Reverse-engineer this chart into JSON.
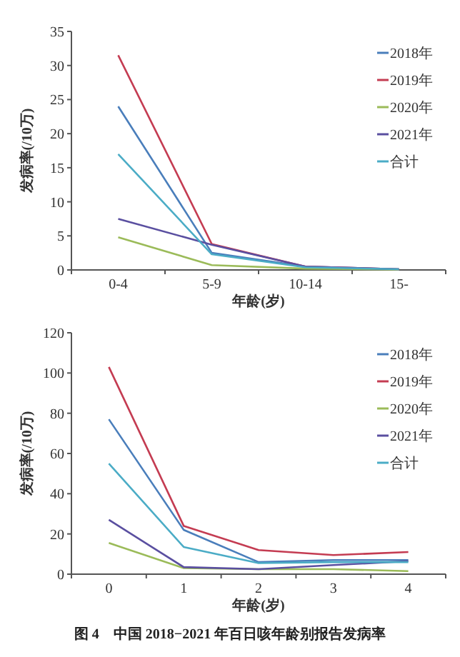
{
  "chart_data": [
    {
      "type": "line",
      "xlabel": "年龄(岁)",
      "ylabel": "发病率(/10万)",
      "categories": [
        "0-4",
        "5-9",
        "10-14",
        "15-"
      ],
      "ylim": [
        0,
        35
      ],
      "yticks": [
        0,
        5,
        10,
        15,
        20,
        25,
        30,
        35
      ],
      "legend": "top right",
      "series": [
        {
          "name": "2018年",
          "color": "#4a7ebb",
          "values": [
            24,
            2.5,
            0.5,
            0.1
          ]
        },
        {
          "name": "2019年",
          "color": "#c43c52",
          "values": [
            31.5,
            3.8,
            0.5,
            0.1
          ]
        },
        {
          "name": "2020年",
          "color": "#9bbb59",
          "values": [
            4.8,
            0.7,
            0.2,
            0.05
          ]
        },
        {
          "name": "2021年",
          "color": "#5a4fa0",
          "values": [
            7.5,
            3.7,
            0.5,
            0.1
          ]
        },
        {
          "name": "合计",
          "color": "#4bacc6",
          "values": [
            17,
            2.3,
            0.4,
            0.1
          ]
        }
      ]
    },
    {
      "type": "line",
      "xlabel": "年龄(岁)",
      "ylabel": "发病率(/10万)",
      "categories": [
        "0",
        "1",
        "2",
        "3",
        "4"
      ],
      "ylim": [
        0,
        120
      ],
      "yticks": [
        0,
        20,
        40,
        60,
        80,
        100,
        120
      ],
      "legend": "top right",
      "annotations": [
        "图 4　中国 2018−2021 年百日咳年龄别报告发病率"
      ],
      "series": [
        {
          "name": "2018年",
          "color": "#4a7ebb",
          "values": [
            77,
            22,
            6,
            7,
            7
          ]
        },
        {
          "name": "2019年",
          "color": "#c43c52",
          "values": [
            103,
            24,
            12,
            9.5,
            11
          ]
        },
        {
          "name": "2020年",
          "color": "#9bbb59",
          "values": [
            15.5,
            3,
            2.5,
            2.5,
            1.5
          ]
        },
        {
          "name": "2021年",
          "color": "#5a4fa0",
          "values": [
            27,
            3.5,
            2.5,
            4.5,
            6.5
          ]
        },
        {
          "name": "合计",
          "color": "#4bacc6",
          "values": [
            55,
            13.5,
            5.5,
            6,
            6
          ]
        }
      ]
    }
  ]
}
